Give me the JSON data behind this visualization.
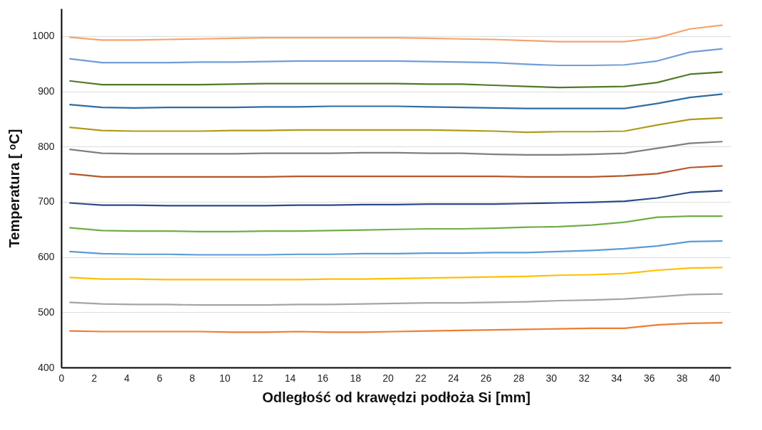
{
  "chart_data": {
    "type": "line",
    "xlabel": "Odległość od krawędzi podłoża Si [mm]",
    "ylabel": "Temperatura [ ᵒC]",
    "x": [
      0.5,
      2.5,
      4.5,
      6.5,
      8.5,
      10.5,
      12.5,
      14.5,
      16.5,
      18.5,
      20.5,
      22.5,
      24.5,
      26.5,
      28.5,
      30.5,
      32.5,
      34.5,
      36.5,
      38.5,
      40.5
    ],
    "xlim": [
      0,
      41
    ],
    "xticks": [
      0,
      2,
      4,
      6,
      8,
      10,
      12,
      14,
      16,
      18,
      20,
      22,
      24,
      26,
      28,
      30,
      32,
      34,
      36,
      38,
      40
    ],
    "ylim": [
      400,
      1050
    ],
    "yticks": [
      400,
      500,
      600,
      700,
      800,
      900,
      1000
    ],
    "grid": "y",
    "legend": false,
    "marker": "none",
    "line_style": "solid",
    "series": [
      {
        "color": "#f4a36c",
        "values": [
          998,
          993,
          993,
          994,
          995,
          996,
          997,
          997,
          997,
          997,
          997,
          996,
          995,
          994,
          992,
          990,
          990,
          990,
          997,
          1013,
          1020
        ]
      },
      {
        "color": "#6f9ed9",
        "values": [
          959,
          952,
          952,
          952,
          953,
          953,
          954,
          955,
          955,
          955,
          955,
          954,
          953,
          952,
          949,
          947,
          947,
          948,
          955,
          971,
          977
        ]
      },
      {
        "color": "#4f7a28",
        "values": [
          919,
          912,
          912,
          912,
          912,
          913,
          914,
          914,
          914,
          914,
          914,
          913,
          913,
          911,
          909,
          907,
          908,
          909,
          916,
          931,
          935
        ]
      },
      {
        "color": "#2e6ca4",
        "values": [
          876,
          871,
          870,
          871,
          871,
          871,
          872,
          872,
          873,
          873,
          873,
          872,
          871,
          870,
          869,
          869,
          869,
          869,
          878,
          889,
          895
        ]
      },
      {
        "color": "#b09a1a",
        "values": [
          835,
          829,
          828,
          828,
          828,
          829,
          829,
          830,
          830,
          830,
          830,
          830,
          829,
          828,
          826,
          827,
          827,
          828,
          839,
          849,
          852
        ]
      },
      {
        "color": "#7f7f7f",
        "values": [
          795,
          788,
          787,
          787,
          787,
          787,
          788,
          788,
          788,
          789,
          789,
          788,
          788,
          786,
          785,
          785,
          786,
          788,
          797,
          806,
          809
        ]
      },
      {
        "color": "#b5552a",
        "values": [
          751,
          745,
          745,
          745,
          745,
          745,
          745,
          746,
          746,
          746,
          746,
          746,
          746,
          746,
          745,
          745,
          745,
          747,
          751,
          762,
          765
        ]
      },
      {
        "color": "#2b4a8b",
        "values": [
          698,
          694,
          694,
          693,
          693,
          693,
          693,
          694,
          694,
          695,
          695,
          696,
          696,
          696,
          697,
          698,
          699,
          701,
          707,
          717,
          720
        ]
      },
      {
        "color": "#70ad47",
        "values": [
          653,
          648,
          647,
          647,
          646,
          646,
          647,
          647,
          648,
          649,
          650,
          651,
          651,
          652,
          654,
          655,
          658,
          663,
          672,
          674,
          674
        ]
      },
      {
        "color": "#5b9bd5",
        "values": [
          610,
          606,
          605,
          605,
          604,
          604,
          604,
          605,
          605,
          606,
          606,
          607,
          607,
          608,
          608,
          610,
          612,
          615,
          620,
          628,
          629
        ]
      },
      {
        "color": "#ffc000",
        "values": [
          563,
          560,
          560,
          559,
          559,
          559,
          559,
          559,
          560,
          560,
          561,
          562,
          563,
          564,
          565,
          567,
          568,
          570,
          576,
          580,
          581
        ]
      },
      {
        "color": "#a5a5a5",
        "values": [
          518,
          515,
          514,
          514,
          513,
          513,
          513,
          514,
          514,
          515,
          516,
          517,
          517,
          518,
          519,
          521,
          522,
          524,
          528,
          532,
          533
        ]
      },
      {
        "color": "#ed7d31",
        "values": [
          466,
          465,
          465,
          465,
          465,
          464,
          464,
          465,
          464,
          464,
          465,
          466,
          467,
          468,
          469,
          470,
          471,
          471,
          477,
          480,
          481
        ]
      }
    ]
  }
}
